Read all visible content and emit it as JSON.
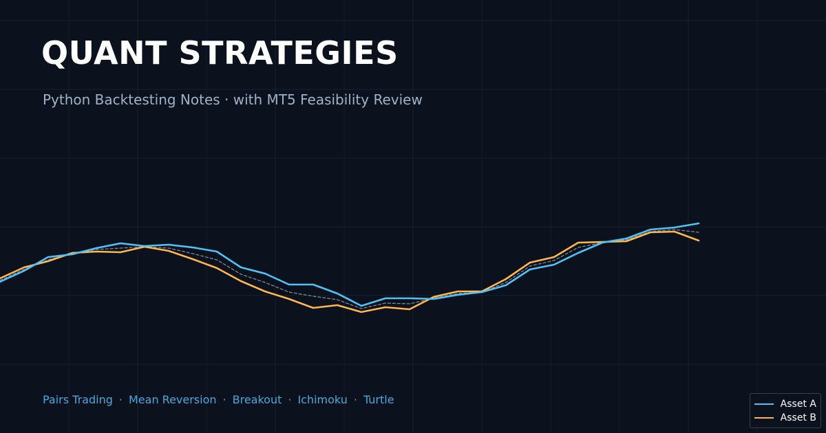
{
  "header": {
    "title": "QUANT STRATEGIES",
    "subtitle": "Python Backtesting Notes  ·  with MT5 Feasibility Review"
  },
  "tags": [
    "Pairs Trading",
    "Mean Reversion",
    "Breakout",
    "Ichimoku",
    "Turtle"
  ],
  "tag_separator": "·",
  "colors": {
    "background": "#0c121d",
    "grid": "#161e2b",
    "asset_a": "#4fc3f7",
    "asset_b": "#ffb74d",
    "spread": "#7f8897"
  },
  "chart_data": {
    "type": "line",
    "grid": true,
    "legend_position": "bottom-right",
    "x": [
      0,
      1,
      2,
      3,
      4,
      5,
      6,
      7,
      8,
      9,
      10,
      11,
      12,
      13,
      14,
      15,
      16,
      17,
      18,
      19,
      20,
      21,
      22,
      23,
      24,
      25,
      26,
      27,
      28,
      29
    ],
    "series": [
      {
        "name": "Asset A",
        "color": "#4fc3f7",
        "style": "solid",
        "values": [
          410,
          394,
          374,
          370,
          361,
          354,
          358,
          356,
          360,
          366,
          389,
          398,
          414,
          414,
          427,
          445,
          434,
          434,
          435,
          429,
          425,
          415,
          392,
          385,
          368,
          353,
          347,
          334,
          331,
          325
        ]
      },
      {
        "name": "Asset B",
        "color": "#ffb74d",
        "style": "solid",
        "values": [
          405,
          389,
          380,
          368,
          366,
          367,
          359,
          365,
          377,
          390,
          409,
          424,
          435,
          448,
          444,
          454,
          447,
          450,
          432,
          424,
          424,
          406,
          382,
          374,
          353,
          352,
          351,
          338,
          337,
          350
        ]
      },
      {
        "color": "#7f8897",
        "style": "dashed",
        "values": [
          408,
          392,
          378,
          369,
          363,
          361,
          359,
          361,
          369,
          378,
          399,
          411,
          425,
          431,
          436,
          449,
          441,
          442,
          434,
          427,
          425,
          411,
          387,
          379,
          360,
          353,
          349,
          337,
          334,
          338
        ]
      }
    ]
  }
}
